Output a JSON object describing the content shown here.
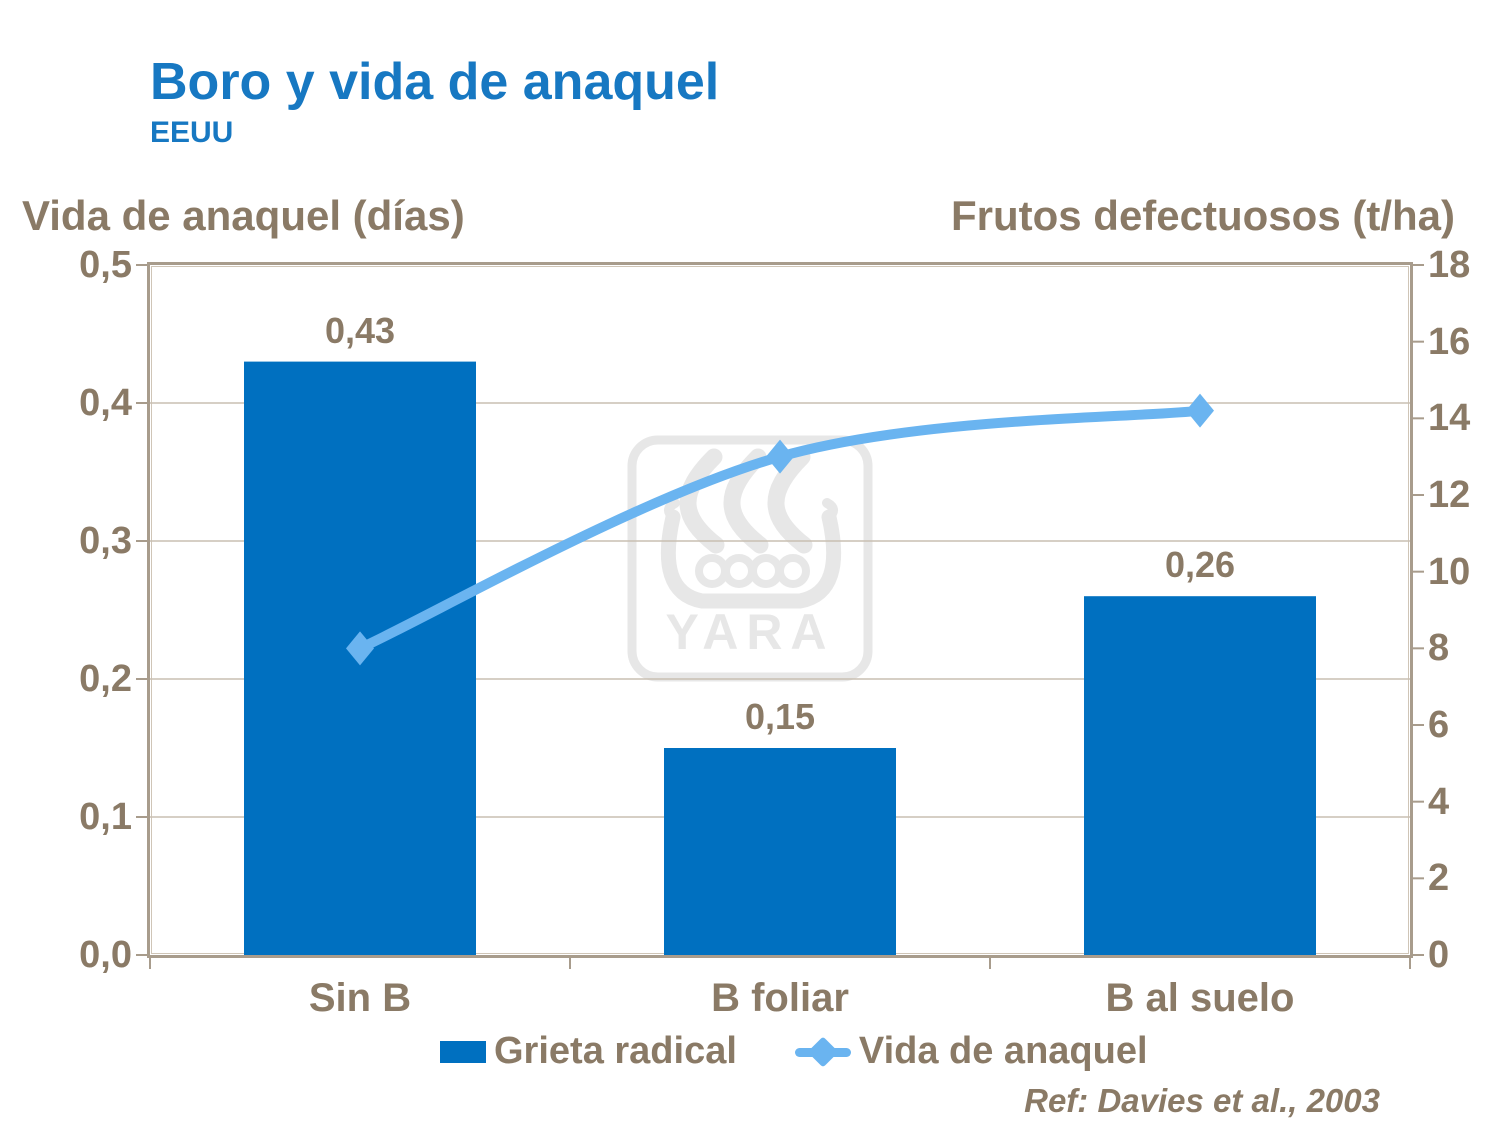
{
  "title": "Boro y vida de anaquel",
  "subtitle": "EEUU",
  "reference": "Ref: Davies et al., 2003",
  "watermark_text": "YARA",
  "colors": {
    "title": "#1778c2",
    "text": "#8a7a66",
    "bar": "#0070c0",
    "line": "#6ab4f0",
    "plot_border": "#a89c8c",
    "gridline": "#c9bfb2",
    "watermark": "#e7e7e7"
  },
  "chart_data": {
    "type": "bar+line",
    "categories": [
      "Sin B",
      "B foliar",
      "B al suelo"
    ],
    "series": [
      {
        "name": "Grieta radical",
        "type": "bar",
        "axis": "left",
        "values": [
          0.43,
          0.15,
          0.26
        ],
        "labels": [
          "0,43",
          "0,15",
          "0,26"
        ],
        "color": "#0070c0"
      },
      {
        "name": "Vida de anaquel",
        "type": "line",
        "axis": "right",
        "values": [
          8,
          13,
          14.2
        ],
        "color": "#6ab4f0"
      }
    ],
    "left_axis": {
      "title": "Vida de anaquel (días)",
      "min": 0,
      "max": 0.5,
      "tick_labels_top_to_bottom": [
        "0,5",
        "0,4",
        "0,3",
        "0,2",
        "0,1",
        "0,0"
      ]
    },
    "right_axis": {
      "title": "Frutos defectuosos (t/ha)",
      "min": 0,
      "max": 18,
      "tick_labels_top_to_bottom": [
        "18",
        "16",
        "14",
        "12",
        "10",
        "8",
        "6",
        "4",
        "2",
        "0"
      ]
    },
    "grid": "horizontal",
    "legend_position": "bottom"
  }
}
